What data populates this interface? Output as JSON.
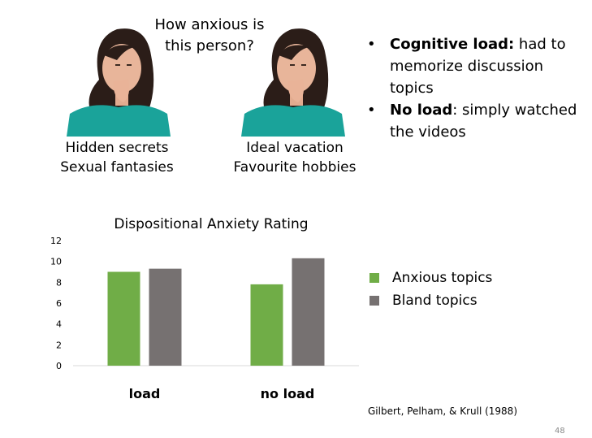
{
  "left_group": {
    "captions": [
      "Hidden secrets",
      "Sexual fantasies"
    ]
  },
  "right_group": {
    "captions": [
      "Ideal vacation",
      "Favourite hobbies"
    ]
  },
  "question": "How anxious is this person?",
  "bullets": [
    {
      "bold": "Cognitive load:",
      "text": " had to memorize discussion topics"
    },
    {
      "bold": "No load",
      "text": ": simply watched the videos"
    }
  ],
  "legend": [
    {
      "label": "Anxious topics",
      "color": "#70ad47"
    },
    {
      "label": "Bland topics",
      "color": "#767171"
    }
  ],
  "citation": "Gilbert, Pelham, & Krull (1988)",
  "page_number": "48",
  "chart_data": {
    "type": "bar",
    "title": "Dispositional Anxiety Rating",
    "categories": [
      "load",
      "no load"
    ],
    "series": [
      {
        "name": "Anxious topics",
        "values": [
          9.0,
          7.8
        ],
        "color": "#70ad47"
      },
      {
        "name": "Bland topics",
        "values": [
          9.3,
          10.3
        ],
        "color": "#767171"
      }
    ],
    "yticks": [
      "0",
      "2",
      "4",
      "6",
      "8",
      "10",
      "12"
    ],
    "ylim": [
      0,
      12
    ],
    "grid": false,
    "legend_position": "right"
  }
}
